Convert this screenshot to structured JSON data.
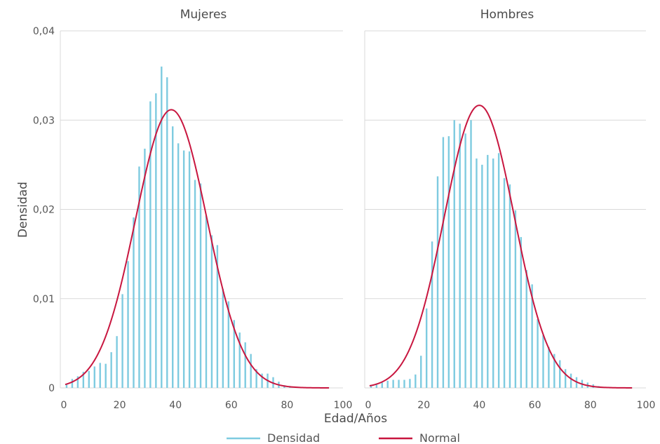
{
  "chart_data": {
    "type": "bar",
    "ylabel": "Densidad",
    "xlabel": "Edad/Años",
    "ylim": [
      0,
      0.04
    ],
    "yticks": [
      0,
      0.01,
      0.02,
      0.03,
      0.04
    ],
    "ytick_labels": [
      "0",
      "0,01",
      "0,02",
      "0,03",
      "0,04"
    ],
    "xlim": [
      0,
      100
    ],
    "xticks": [
      0,
      20,
      40,
      60,
      80,
      100
    ],
    "xtick_labels": [
      "0",
      "20",
      "40",
      "60",
      "80",
      "100"
    ],
    "legend": {
      "position": "bottom",
      "entries": [
        {
          "label": "Densidad",
          "color": "#7ecbe0"
        },
        {
          "label": "Normal",
          "color": "#c8163f"
        }
      ]
    },
    "colors": {
      "hist": "#7ecbe0",
      "normal": "#c8163f",
      "grid": "#d9d9d9"
    },
    "panels": [
      {
        "title": "Mujeres",
        "histogram": {
          "x": [
            1,
            3,
            5,
            7,
            9,
            11,
            13,
            15,
            17,
            19,
            21,
            23,
            25,
            27,
            29,
            31,
            33,
            35,
            37,
            39,
            41,
            43,
            45,
            47,
            49,
            51,
            53,
            55,
            57,
            59,
            61,
            63,
            65,
            67,
            69,
            71,
            73,
            75,
            77,
            79,
            81,
            83
          ],
          "density": [
            0.0004,
            0.001,
            0.0013,
            0.0018,
            0.0019,
            0.0024,
            0.0028,
            0.0027,
            0.004,
            0.0058,
            0.0105,
            0.0142,
            0.0191,
            0.0248,
            0.0268,
            0.0321,
            0.033,
            0.036,
            0.0348,
            0.0293,
            0.0274,
            0.0266,
            0.0265,
            0.0233,
            0.0229,
            0.0193,
            0.0171,
            0.016,
            0.0111,
            0.0097,
            0.0076,
            0.0062,
            0.0051,
            0.0038,
            0.0021,
            0.0016,
            0.0016,
            0.0012,
            0.0007,
            0.0003,
            0.0002,
            0.0001
          ]
        },
        "normal": {
          "mean": 38.5,
          "sd": 12.8
        }
      },
      {
        "title": "Hombres",
        "histogram": {
          "x": [
            1,
            3,
            5,
            7,
            9,
            11,
            13,
            15,
            17,
            19,
            21,
            23,
            25,
            27,
            29,
            31,
            33,
            35,
            37,
            39,
            41,
            43,
            45,
            47,
            49,
            51,
            53,
            55,
            57,
            59,
            61,
            63,
            65,
            67,
            69,
            71,
            73,
            75,
            77,
            79,
            81,
            83,
            85,
            87
          ],
          "density": [
            0.0003,
            0.0005,
            0.0006,
            0.0008,
            0.0009,
            0.0009,
            0.0009,
            0.001,
            0.0015,
            0.0036,
            0.0089,
            0.0164,
            0.0237,
            0.0281,
            0.0282,
            0.03,
            0.0296,
            0.0285,
            0.03,
            0.0257,
            0.025,
            0.0261,
            0.0257,
            0.0263,
            0.0235,
            0.0228,
            0.0199,
            0.0169,
            0.0132,
            0.0116,
            0.0077,
            0.0059,
            0.0046,
            0.0038,
            0.0031,
            0.0021,
            0.0016,
            0.0012,
            0.0009,
            0.0006,
            0.0004,
            0.0002,
            0.0001,
            0.0001
          ]
        },
        "normal": {
          "mean": 40.0,
          "sd": 12.6
        }
      }
    ]
  }
}
